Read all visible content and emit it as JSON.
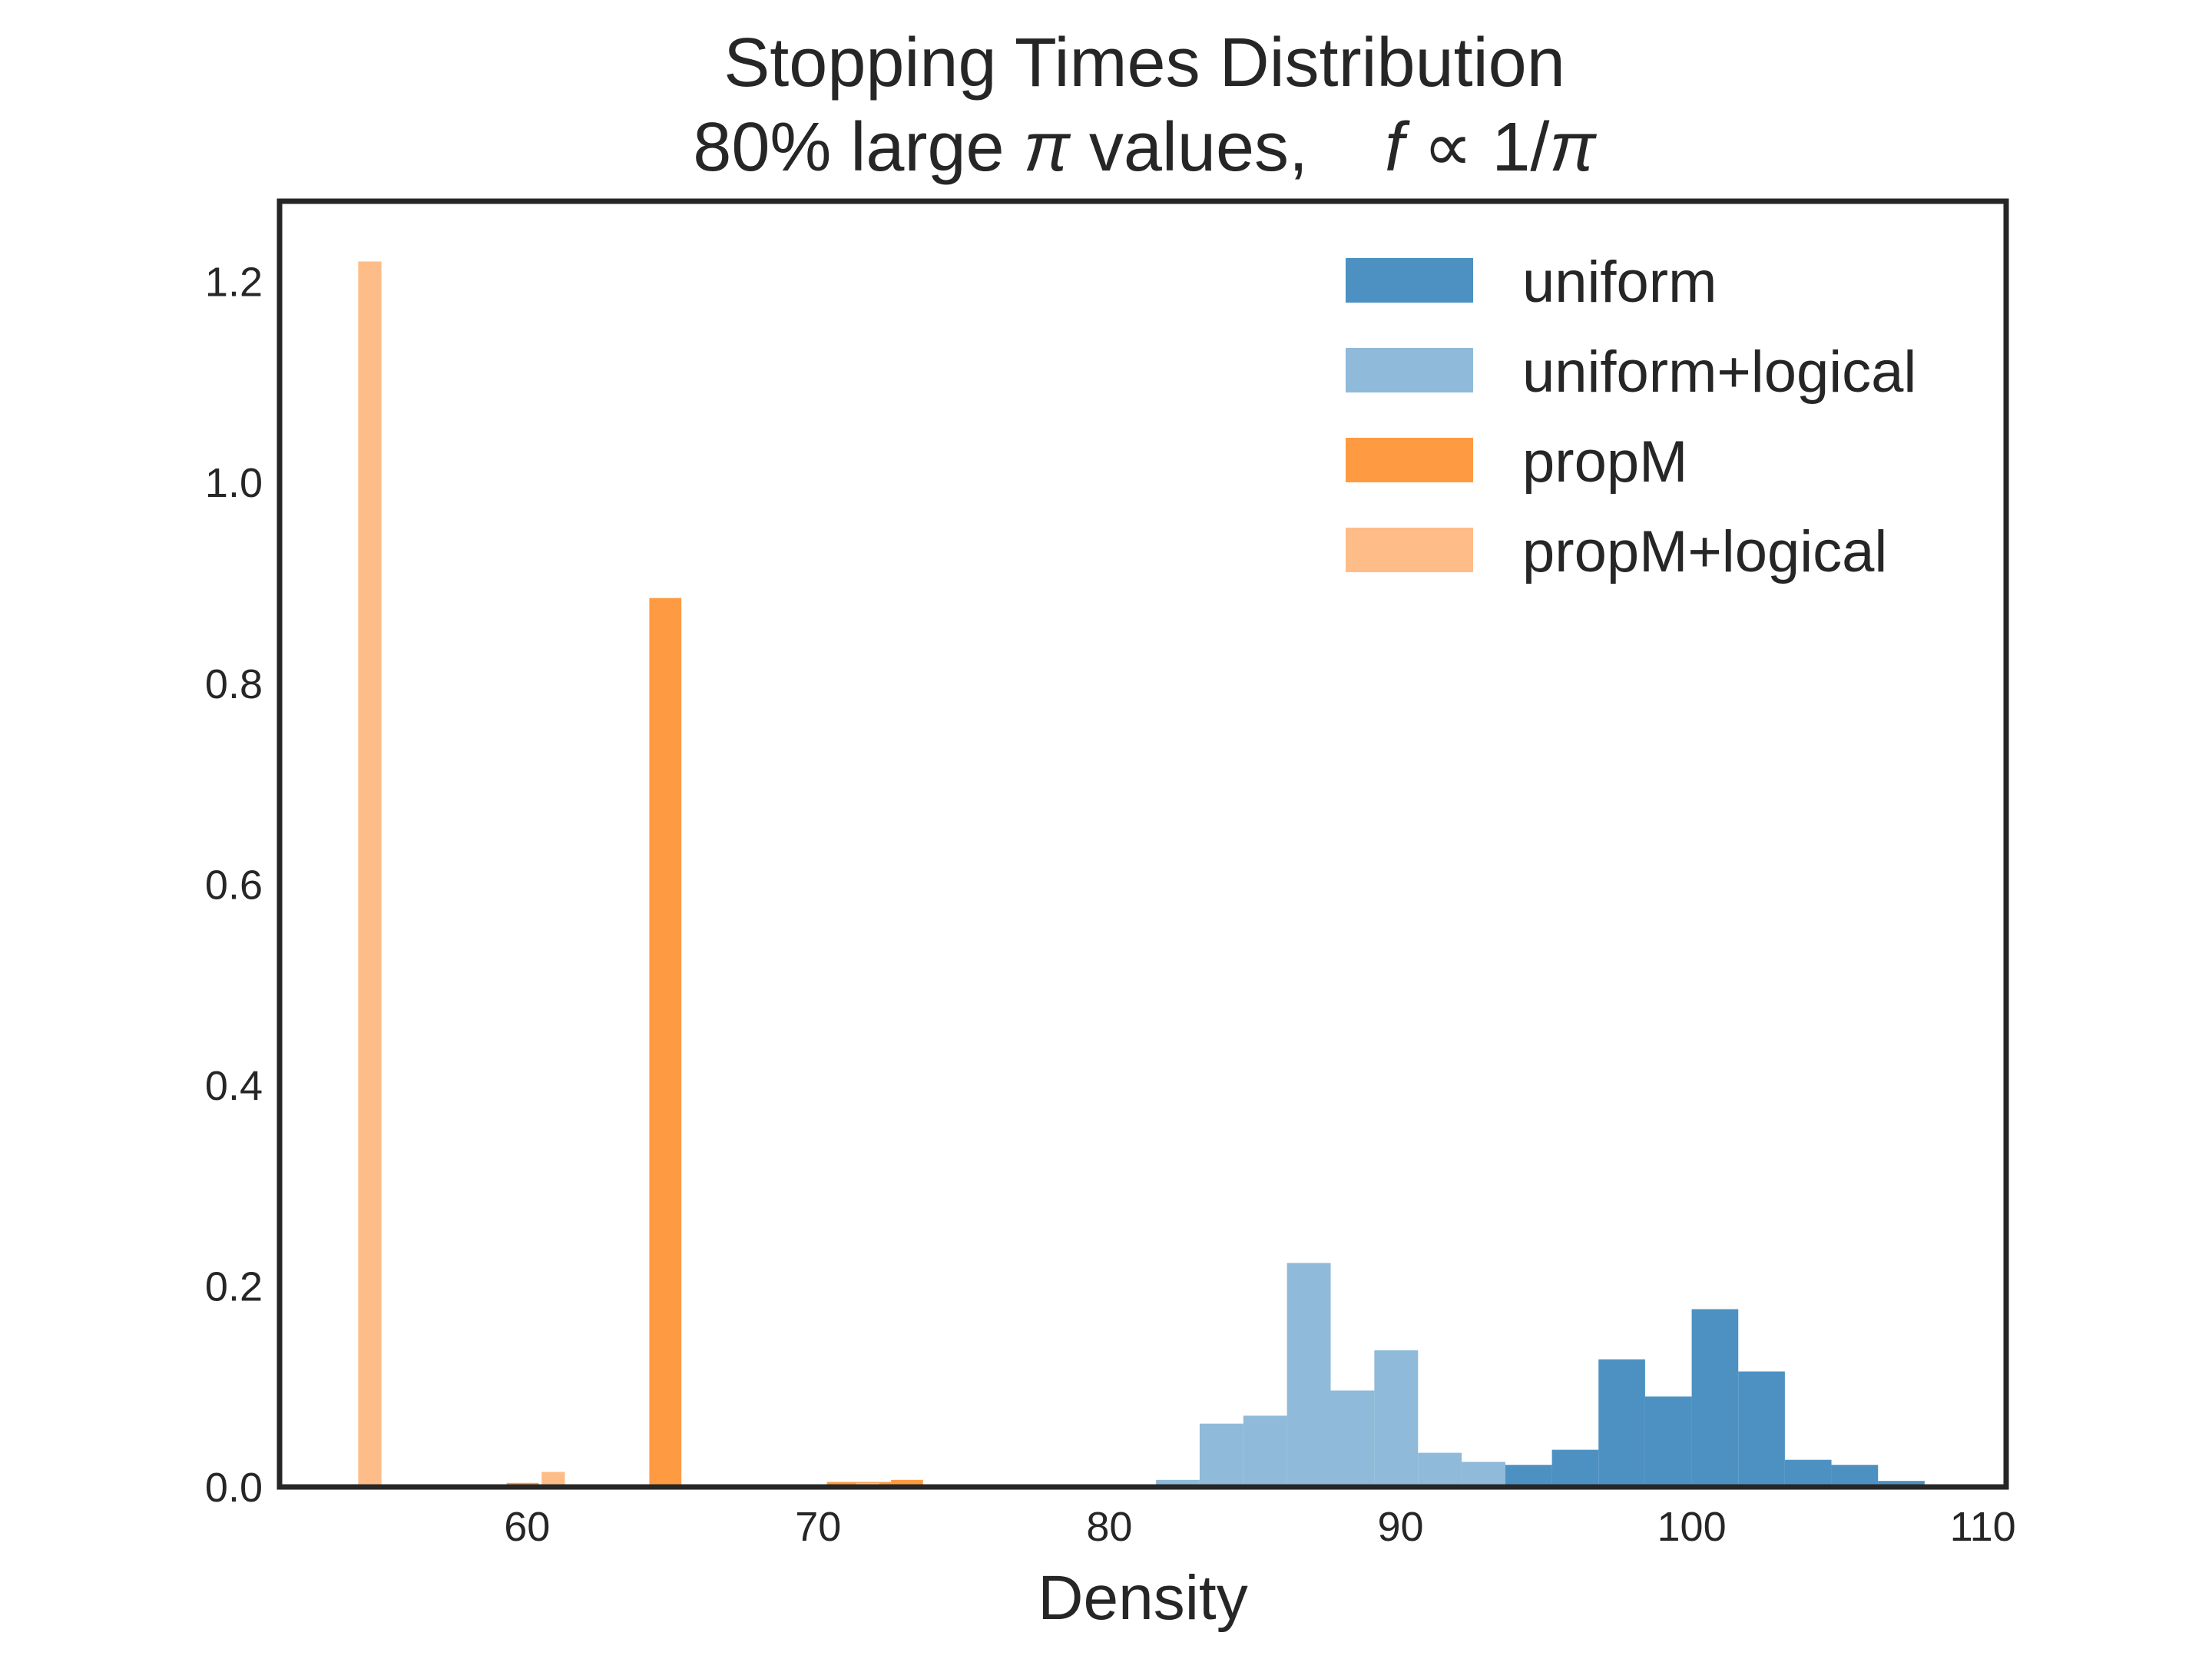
{
  "chart_data": {
    "type": "bar",
    "title": "Stopping Times Distribution",
    "subtitle_parts": {
      "before_pi": "80% large ",
      "pi_symbol": "π",
      "after_pi": " values,",
      "f_symbol": "f",
      "proportional": " ∝ 1/",
      "pi_symbol_2": "π"
    },
    "xlabel": "Density",
    "ylabel": "",
    "xlim": [
      51.5,
      110.8
    ],
    "ylim": [
      0,
      1.28
    ],
    "xticks": [
      60,
      70,
      80,
      90,
      100,
      110
    ],
    "yticks": [
      0.0,
      0.2,
      0.4,
      0.6,
      0.8,
      1.0,
      1.2
    ],
    "ytick_labels": [
      "0.0",
      "0.2",
      "0.4",
      "0.6",
      "0.8",
      "1.0",
      "1.2"
    ],
    "grid": false,
    "legend_position": "top-right",
    "series": [
      {
        "name": "uniform+logical",
        "color": "#8fbad9",
        "bins": [
          {
            "x0": 81.6,
            "x1": 83.1,
            "y": 0.007
          },
          {
            "x0": 83.1,
            "x1": 84.6,
            "y": 0.063
          },
          {
            "x0": 84.6,
            "x1": 86.1,
            "y": 0.071
          },
          {
            "x0": 86.1,
            "x1": 87.6,
            "y": 0.223
          },
          {
            "x0": 87.6,
            "x1": 89.1,
            "y": 0.096
          },
          {
            "x0": 89.1,
            "x1": 90.6,
            "y": 0.136
          },
          {
            "x0": 90.6,
            "x1": 92.1,
            "y": 0.034
          },
          {
            "x0": 92.1,
            "x1": 93.6,
            "y": 0.025
          }
        ]
      },
      {
        "name": "uniform",
        "color": "#4c91c2",
        "bins": [
          {
            "x0": 93.6,
            "x1": 95.2,
            "y": 0.022
          },
          {
            "x0": 95.2,
            "x1": 96.8,
            "y": 0.037
          },
          {
            "x0": 96.8,
            "x1": 98.4,
            "y": 0.127
          },
          {
            "x0": 98.4,
            "x1": 100.0,
            "y": 0.09
          },
          {
            "x0": 100.0,
            "x1": 101.6,
            "y": 0.177
          },
          {
            "x0": 101.6,
            "x1": 103.2,
            "y": 0.115
          },
          {
            "x0": 103.2,
            "x1": 104.8,
            "y": 0.027
          },
          {
            "x0": 104.8,
            "x1": 106.4,
            "y": 0.022
          },
          {
            "x0": 106.4,
            "x1": 108.0,
            "y": 0.006
          }
        ]
      },
      {
        "name": "propM",
        "color": "#fe9a42",
        "bins": [
          {
            "x0": 59.3,
            "x1": 60.4,
            "y": 0.004
          },
          {
            "x0": 64.2,
            "x1": 65.3,
            "y": 0.885
          },
          {
            "x0": 70.3,
            "x1": 72.5,
            "y": 0.005
          },
          {
            "x0": 72.5,
            "x1": 73.6,
            "y": 0.007
          }
        ]
      },
      {
        "name": "propM+logical",
        "color": "#febd88",
        "bins": [
          {
            "x0": 54.2,
            "x1": 55.0,
            "y": 1.22
          },
          {
            "x0": 60.5,
            "x1": 61.3,
            "y": 0.015
          },
          {
            "x0": 71.3,
            "x1": 72.1,
            "y": 0.004
          }
        ]
      }
    ]
  }
}
